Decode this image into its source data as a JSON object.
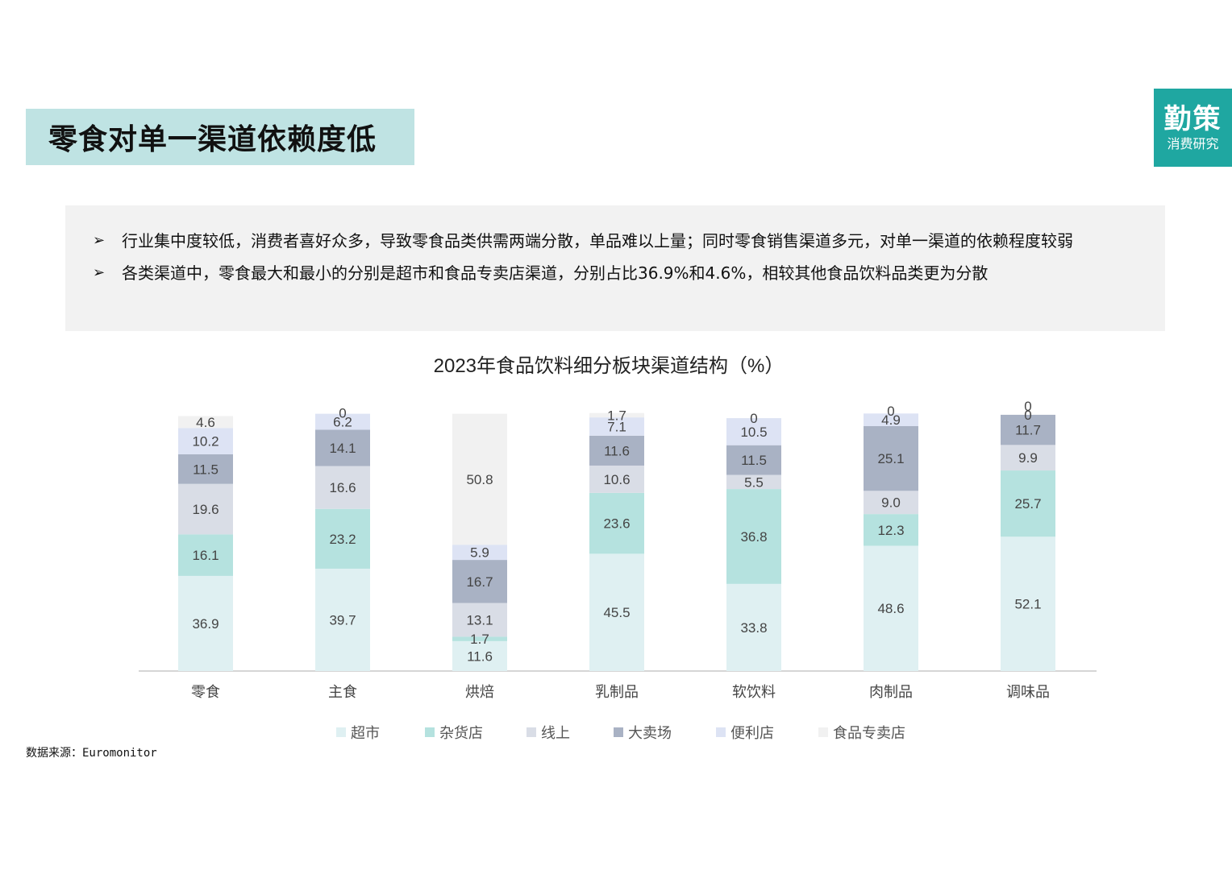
{
  "header": {
    "title": "零食对单一渠道依赖度低",
    "logo_line1": "勤策",
    "logo_line2": "消费研究"
  },
  "bullets": [
    "行业集中度较低，消费者喜好众多，导致零食品类供需两端分散，单品难以上量；同时零食销售渠道多元，对单一渠道的依赖程度较弱",
    "各类渠道中，零食最大和最小的分别是超市和食品专卖店渠道，分别占比36.9%和4.6%，相较其他食品饮料品类更为分散"
  ],
  "bullet_marker": "➢",
  "source": "数据来源：Euromonitor",
  "chart_data": {
    "type": "bar",
    "stacked": true,
    "title": "2023年食品饮料细分板块渠道结构（%）",
    "categories": [
      "零食",
      "主食",
      "烘焙",
      "乳制品",
      "软饮料",
      "肉制品",
      "调味品"
    ],
    "series": [
      {
        "name": "超市",
        "color": "#dff0f2",
        "values": [
          36.9,
          39.7,
          11.6,
          45.5,
          33.8,
          48.6,
          52.1
        ]
      },
      {
        "name": "杂货店",
        "color": "#b5e2df",
        "values": [
          16.1,
          23.2,
          1.7,
          23.6,
          36.8,
          12.3,
          25.7
        ]
      },
      {
        "name": "线上",
        "color": "#d9dde6",
        "values": [
          19.6,
          16.6,
          13.1,
          10.6,
          5.5,
          9.0,
          9.9
        ]
      },
      {
        "name": "大卖场",
        "color": "#a9b2c4",
        "values": [
          11.5,
          14.1,
          16.7,
          11.6,
          11.5,
          25.1,
          11.7
        ]
      },
      {
        "name": "便利店",
        "color": "#dde3f4",
        "values": [
          10.2,
          6.2,
          5.9,
          7.1,
          10.5,
          4.9,
          0
        ]
      },
      {
        "name": "食品专卖店",
        "color": "#f1f1f1",
        "values": [
          4.6,
          0,
          50.8,
          1.7,
          0,
          0,
          0
        ]
      }
    ],
    "value_labels": [
      [
        "36.9",
        "39.7",
        "11.6",
        "45.5",
        "33.8",
        "48.6",
        "52.1"
      ],
      [
        "16.1",
        "23.2",
        "1.7",
        "23.6",
        "36.8",
        "12.3",
        "25.7"
      ],
      [
        "19.6",
        "16.6",
        "13.1",
        "10.6",
        "5.5",
        "9.0",
        "9.9"
      ],
      [
        "11.5",
        "14.1",
        "16.7",
        "11.6",
        "11.5",
        "25.1",
        "11.7"
      ],
      [
        "10.2",
        "6.2",
        "5.9",
        "7.1",
        "10.5",
        "4.9",
        "0"
      ],
      [
        "4.6",
        "0",
        "50.8",
        "1.7",
        "0",
        "0",
        "0"
      ]
    ],
    "ylim": [
      0,
      100
    ],
    "legend_position": "bottom",
    "grid": false
  }
}
